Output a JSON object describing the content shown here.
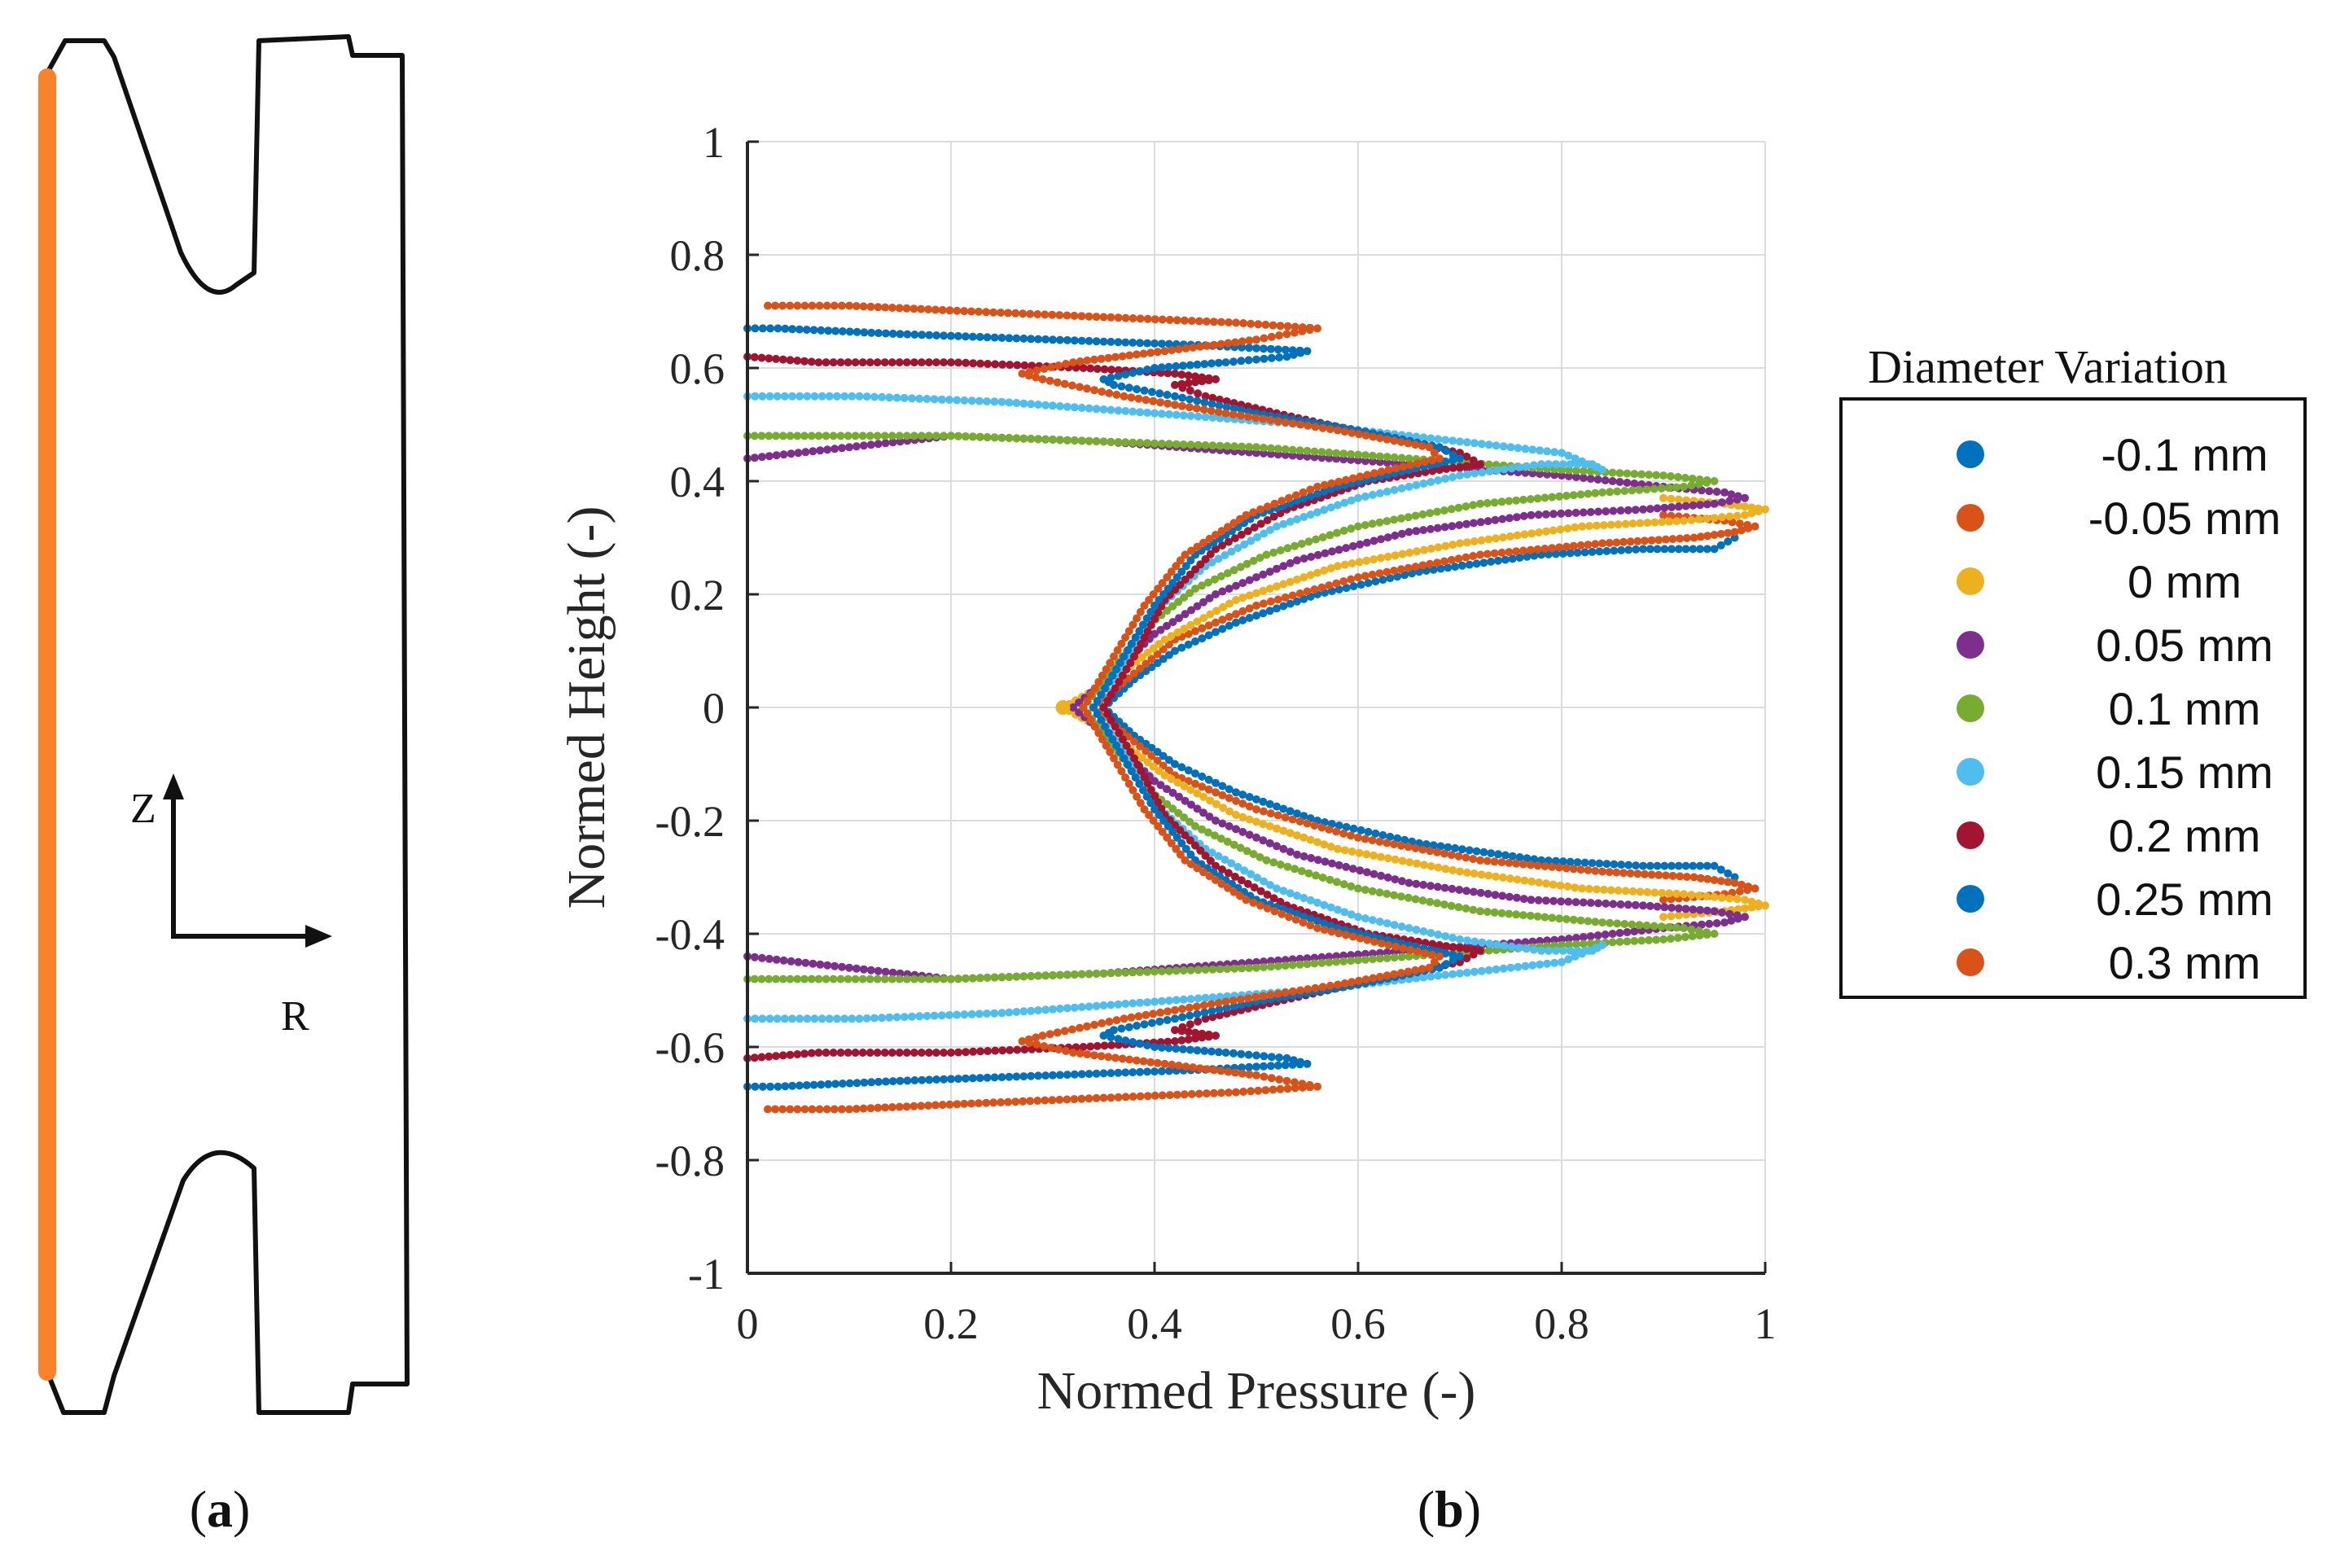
{
  "panel_a": {
    "label_open": "(",
    "label_letter": "a",
    "label_close": ")",
    "axis_z": "Z",
    "axis_r": "R",
    "highlight_color": "#F7832A"
  },
  "panel_b": {
    "label_open": "(",
    "label_letter": "b",
    "label_close": ")"
  },
  "colors": [
    "#0072BD",
    "#D95319",
    "#EDB120",
    "#7E2F8E",
    "#77AC30",
    "#4DBEEE",
    "#A2142F",
    "#0072BD",
    "#D95319"
  ],
  "chart_data": {
    "type": "scatter",
    "title": "",
    "xlabel": "Normed Pressure (-)",
    "ylabel": "Normed Height (-)",
    "xlim": [
      0,
      1
    ],
    "ylim": [
      -1,
      1
    ],
    "xticks": [
      0,
      0.2,
      0.4,
      0.6,
      0.8,
      1
    ],
    "xtick_labels": [
      "0",
      "0.2",
      "0.4",
      "0.6",
      "0.8",
      "1"
    ],
    "yticks": [
      1,
      0.8,
      0.6,
      0.4,
      0.2,
      0,
      -0.2,
      -0.4,
      -0.6,
      -0.8,
      -1
    ],
    "ytick_labels": [
      "1",
      "0.8",
      "0.6",
      "0.4",
      "0.2",
      "0",
      "-0.2",
      "-0.4",
      "-0.6",
      "-0.8",
      "-1"
    ],
    "grid": true,
    "legend_title": "Diameter Variation",
    "legend_position": "right-outside",
    "symmetric_about_zero": true,
    "series": [
      {
        "name": "-0.1 mm",
        "upper_points": [
          [
            0.35,
            0.0
          ],
          [
            0.38,
            0.05
          ],
          [
            0.42,
            0.1
          ],
          [
            0.48,
            0.15
          ],
          [
            0.56,
            0.2
          ],
          [
            0.66,
            0.24
          ],
          [
            0.78,
            0.27
          ],
          [
            0.88,
            0.28
          ],
          [
            0.95,
            0.28
          ],
          [
            0.97,
            0.3
          ]
        ]
      },
      {
        "name": "-0.05 mm",
        "upper_points": [
          [
            0.34,
            0.0
          ],
          [
            0.38,
            0.06
          ],
          [
            0.42,
            0.12
          ],
          [
            0.5,
            0.18
          ],
          [
            0.6,
            0.23
          ],
          [
            0.72,
            0.27
          ],
          [
            0.84,
            0.29
          ],
          [
            0.93,
            0.3
          ],
          [
            0.97,
            0.31
          ],
          [
            0.99,
            0.32
          ],
          [
            0.96,
            0.33
          ],
          [
            0.9,
            0.34
          ]
        ]
      },
      {
        "name": "0 mm",
        "upper_points": [
          [
            0.31,
            0.0
          ],
          [
            0.36,
            0.05
          ],
          [
            0.41,
            0.12
          ],
          [
            0.48,
            0.19
          ],
          [
            0.58,
            0.25
          ],
          [
            0.7,
            0.29
          ],
          [
            0.82,
            0.32
          ],
          [
            0.92,
            0.33
          ],
          [
            0.98,
            0.34
          ],
          [
            1.0,
            0.35
          ],
          [
            0.96,
            0.36
          ],
          [
            0.9,
            0.37
          ]
        ]
      },
      {
        "name": "0.05 mm",
        "upper_points": [
          [
            0.32,
            0.0
          ],
          [
            0.36,
            0.06
          ],
          [
            0.4,
            0.13
          ],
          [
            0.46,
            0.2
          ],
          [
            0.54,
            0.26
          ],
          [
            0.65,
            0.31
          ],
          [
            0.77,
            0.34
          ],
          [
            0.88,
            0.35
          ],
          [
            0.95,
            0.36
          ],
          [
            0.98,
            0.37
          ],
          [
            0.96,
            0.38
          ],
          [
            0.9,
            0.39
          ],
          [
            0.8,
            0.41
          ],
          [
            0.65,
            0.43
          ],
          [
            0.5,
            0.45
          ],
          [
            0.35,
            0.47
          ],
          [
            0.2,
            0.48
          ],
          [
            0.0,
            0.44
          ]
        ]
      },
      {
        "name": "0.1 mm",
        "upper_points": [
          [
            0.33,
            0.0
          ],
          [
            0.36,
            0.07
          ],
          [
            0.39,
            0.14
          ],
          [
            0.44,
            0.21
          ],
          [
            0.51,
            0.27
          ],
          [
            0.6,
            0.32
          ],
          [
            0.72,
            0.36
          ],
          [
            0.84,
            0.38
          ],
          [
            0.92,
            0.39
          ],
          [
            0.95,
            0.4
          ],
          [
            0.9,
            0.41
          ],
          [
            0.8,
            0.42
          ],
          [
            0.65,
            0.44
          ],
          [
            0.5,
            0.46
          ],
          [
            0.35,
            0.47
          ],
          [
            0.2,
            0.48
          ],
          [
            0.07,
            0.48
          ],
          [
            0.0,
            0.48
          ]
        ]
      },
      {
        "name": "0.15 mm",
        "upper_points": [
          [
            0.34,
            0.0
          ],
          [
            0.37,
            0.08
          ],
          [
            0.4,
            0.17
          ],
          [
            0.45,
            0.25
          ],
          [
            0.52,
            0.32
          ],
          [
            0.6,
            0.37
          ],
          [
            0.7,
            0.41
          ],
          [
            0.78,
            0.43
          ],
          [
            0.83,
            0.43
          ],
          [
            0.84,
            0.42
          ],
          [
            0.8,
            0.45
          ],
          [
            0.7,
            0.47
          ],
          [
            0.55,
            0.5
          ],
          [
            0.4,
            0.52
          ],
          [
            0.25,
            0.54
          ],
          [
            0.11,
            0.55
          ],
          [
            0.0,
            0.55
          ]
        ]
      },
      {
        "name": "0.2 mm",
        "upper_points": [
          [
            0.35,
            0.0
          ],
          [
            0.38,
            0.09
          ],
          [
            0.41,
            0.19
          ],
          [
            0.46,
            0.28
          ],
          [
            0.53,
            0.35
          ],
          [
            0.61,
            0.4
          ],
          [
            0.68,
            0.42
          ],
          [
            0.72,
            0.43
          ],
          [
            0.7,
            0.45
          ],
          [
            0.62,
            0.48
          ],
          [
            0.52,
            0.52
          ],
          [
            0.45,
            0.55
          ],
          [
            0.42,
            0.57
          ],
          [
            0.46,
            0.58
          ],
          [
            0.42,
            0.59
          ],
          [
            0.33,
            0.6
          ],
          [
            0.2,
            0.61
          ],
          [
            0.07,
            0.61
          ],
          [
            0.0,
            0.62
          ]
        ]
      },
      {
        "name": "0.25 mm",
        "upper_points": [
          [
            0.34,
            0.0
          ],
          [
            0.37,
            0.09
          ],
          [
            0.4,
            0.18
          ],
          [
            0.44,
            0.27
          ],
          [
            0.5,
            0.34
          ],
          [
            0.58,
            0.39
          ],
          [
            0.65,
            0.42
          ],
          [
            0.7,
            0.44
          ],
          [
            0.68,
            0.46
          ],
          [
            0.6,
            0.49
          ],
          [
            0.5,
            0.52
          ],
          [
            0.42,
            0.55
          ],
          [
            0.36,
            0.57
          ],
          [
            0.35,
            0.58
          ],
          [
            0.4,
            0.6
          ],
          [
            0.47,
            0.61
          ],
          [
            0.53,
            0.62
          ],
          [
            0.55,
            0.63
          ],
          [
            0.45,
            0.64
          ],
          [
            0.3,
            0.65
          ],
          [
            0.15,
            0.66
          ],
          [
            0.03,
            0.67
          ],
          [
            0.0,
            0.67
          ]
        ]
      },
      {
        "name": "0.3 mm",
        "upper_points": [
          [
            0.33,
            0.0
          ],
          [
            0.36,
            0.09
          ],
          [
            0.39,
            0.18
          ],
          [
            0.43,
            0.27
          ],
          [
            0.49,
            0.34
          ],
          [
            0.56,
            0.39
          ],
          [
            0.63,
            0.42
          ],
          [
            0.68,
            0.44
          ],
          [
            0.67,
            0.46
          ],
          [
            0.58,
            0.49
          ],
          [
            0.47,
            0.52
          ],
          [
            0.37,
            0.55
          ],
          [
            0.29,
            0.58
          ],
          [
            0.27,
            0.59
          ],
          [
            0.32,
            0.61
          ],
          [
            0.41,
            0.63
          ],
          [
            0.5,
            0.65
          ],
          [
            0.56,
            0.67
          ],
          [
            0.48,
            0.68
          ],
          [
            0.35,
            0.69
          ],
          [
            0.22,
            0.7
          ],
          [
            0.1,
            0.71
          ],
          [
            0.02,
            0.71
          ]
        ]
      }
    ]
  }
}
